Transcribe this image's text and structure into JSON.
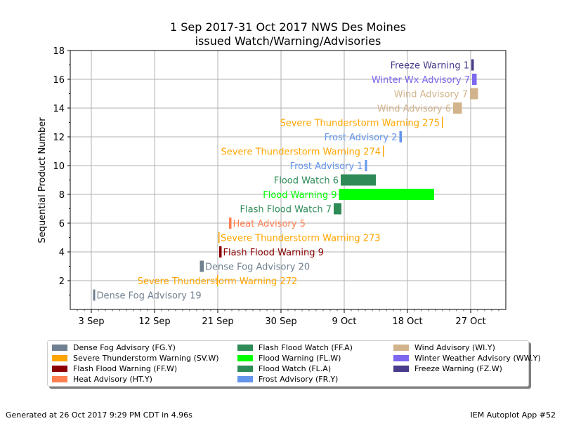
{
  "chart_data": {
    "type": "timeline-bar",
    "title_line1": "1 Sep 2017-31 Oct 2017 NWS Des Moines",
    "title_line2": "issued Watch/Warning/Advisories",
    "ylabel": "Sequential Product Number",
    "ylim": [
      0,
      18
    ],
    "yticks": [
      2,
      4,
      6,
      8,
      10,
      12,
      14,
      16,
      18
    ],
    "xlim_days": [
      -1,
      61
    ],
    "xticks": [
      {
        "label": "3 Sep",
        "day": 2
      },
      {
        "label": "12 Sep",
        "day": 11
      },
      {
        "label": "21 Sep",
        "day": 20
      },
      {
        "label": "30 Sep",
        "day": 29
      },
      {
        "label": "9 Oct",
        "day": 38
      },
      {
        "label": "18 Oct",
        "day": 47
      },
      {
        "label": "27 Oct",
        "day": 56
      }
    ],
    "grid": true,
    "rows": [
      {
        "row": 1,
        "label": "Dense Fog Advisory 19",
        "start": 2.25,
        "end": 2.55,
        "color": "#708090",
        "label_side": "right"
      },
      {
        "row": 2,
        "label": "Severe Thunderstorm Warning 272",
        "start": 19.9,
        "end": 20.0,
        "color": "#FFA500",
        "label_side": "center"
      },
      {
        "row": 3,
        "label": "Dense Fog Advisory 20",
        "start": 17.45,
        "end": 18.0,
        "color": "#708090",
        "label_side": "right"
      },
      {
        "row": 4,
        "label": "Flash Flood Warning 9",
        "start": 20.2,
        "end": 20.55,
        "color": "#8B0000",
        "label_side": "right"
      },
      {
        "row": 5,
        "label": "Severe Thunderstorm Warning 273",
        "start": 20.1,
        "end": 20.2,
        "color": "#FFA500",
        "label_side": "right"
      },
      {
        "row": 6,
        "label": "Heat Advisory 5",
        "start": 21.6,
        "end": 21.95,
        "color": "#FF7F50",
        "label_side": "right"
      },
      {
        "row": 7,
        "label": "Flash Flood Watch 7",
        "start": 36.5,
        "end": 37.6,
        "color": "#2E8B57",
        "label_side": "left"
      },
      {
        "row": 8,
        "label": "Flood Warning 9",
        "start": 37.25,
        "end": 50.8,
        "color": "#00FF00",
        "label_side": "left"
      },
      {
        "row": 9,
        "label": "Flood Watch 6",
        "start": 37.5,
        "end": 42.5,
        "color": "#2E8B57",
        "label_side": "left"
      },
      {
        "row": 10,
        "label": "Frost Advisory 1",
        "start": 40.95,
        "end": 41.25,
        "color": "#6495ED",
        "label_side": "left"
      },
      {
        "row": 11,
        "label": "Severe Thunderstorm Warning 274",
        "start": 43.5,
        "end": 43.6,
        "color": "#FFA500",
        "label_side": "left"
      },
      {
        "row": 12,
        "label": "Frost Advisory 2",
        "start": 45.85,
        "end": 46.2,
        "color": "#6495ED",
        "label_side": "left"
      },
      {
        "row": 13,
        "label": "Severe Thunderstorm Warning 275",
        "start": 51.9,
        "end": 52.0,
        "color": "#FFA500",
        "label_side": "left"
      },
      {
        "row": 14,
        "label": "Wind Advisory 6",
        "start": 53.5,
        "end": 54.75,
        "color": "#D2B48C",
        "label_side": "left"
      },
      {
        "row": 15,
        "label": "Wind Advisory 7",
        "start": 55.9,
        "end": 57.05,
        "color": "#D2B48C",
        "label_side": "left"
      },
      {
        "row": 16,
        "label": "Winter Wx Advisory 7",
        "start": 56.2,
        "end": 56.85,
        "color": "#7B68EE",
        "label_side": "left"
      },
      {
        "row": 17,
        "label": "Freeze Warning 1",
        "start": 56.1,
        "end": 56.45,
        "color": "#483D8B",
        "label_side": "left"
      }
    ]
  },
  "legend": [
    {
      "label": "Dense Fog Advisory (FG.Y)",
      "color": "#708090"
    },
    {
      "label": "Severe Thunderstorm Warning (SV.W)",
      "color": "#FFA500"
    },
    {
      "label": "Flash Flood Warning (FF.W)",
      "color": "#8B0000"
    },
    {
      "label": "Heat Advisory (HT.Y)",
      "color": "#FF7F50"
    },
    {
      "label": "Flash Flood Watch (FF.A)",
      "color": "#2E8B57"
    },
    {
      "label": "Flood Warning (FL.W)",
      "color": "#00FF00"
    },
    {
      "label": "Flood Watch (FL.A)",
      "color": "#2E8B57"
    },
    {
      "label": "Frost Advisory (FR.Y)",
      "color": "#6495ED"
    },
    {
      "label": "Wind Advisory (WI.Y)",
      "color": "#D2B48C"
    },
    {
      "label": "Winter Weather Advisory (WW.Y)",
      "color": "#7B68EE"
    },
    {
      "label": "Freeze Warning (FZ.W)",
      "color": "#483D8B"
    }
  ],
  "footer": {
    "left": "Generated at 26 Oct 2017 9:29 PM CDT in 4.96s",
    "right": "IEM Autoplot App #52"
  }
}
